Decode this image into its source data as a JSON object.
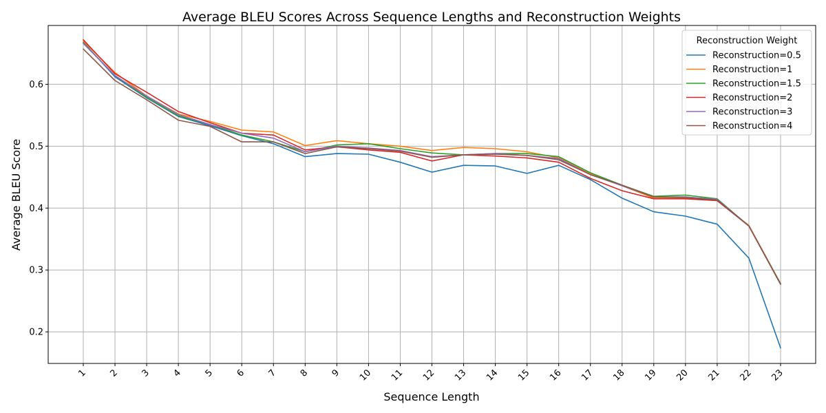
{
  "chart_data": {
    "type": "line",
    "title": "Average BLEU Scores Across Sequence Lengths and Reconstruction Weights",
    "xlabel": "Sequence Length",
    "ylabel": "Average BLEU Score",
    "x": [
      1,
      2,
      3,
      4,
      5,
      6,
      7,
      8,
      9,
      10,
      11,
      12,
      13,
      14,
      15,
      16,
      17,
      18,
      19,
      20,
      21,
      22,
      23
    ],
    "xticks": [
      "1",
      "2",
      "3",
      "4",
      "5",
      "6",
      "7",
      "8",
      "9",
      "10",
      "11",
      "12",
      "13",
      "14",
      "15",
      "16",
      "17",
      "18",
      "19",
      "20",
      "21",
      "22",
      "23"
    ],
    "ylim": [
      0.149,
      0.695
    ],
    "yticks": [
      0.2,
      0.3,
      0.4,
      0.5,
      0.6
    ],
    "ytick_labels": [
      "0.2",
      "0.3",
      "0.4",
      "0.5",
      "0.6"
    ],
    "grid": true,
    "legend": {
      "title": "Reconstruction Weight",
      "placement": "top-right"
    },
    "series": [
      {
        "name": "Reconstruction=0.5",
        "color": "#1f77b4",
        "values": [
          0.668,
          0.612,
          0.578,
          0.548,
          0.533,
          0.517,
          0.504,
          0.483,
          0.488,
          0.487,
          0.474,
          0.458,
          0.469,
          0.468,
          0.456,
          0.469,
          0.446,
          0.416,
          0.394,
          0.387,
          0.374,
          0.319,
          0.174
        ]
      },
      {
        "name": "Reconstruction=1",
        "color": "#ff7f0e",
        "values": [
          0.67,
          0.619,
          0.581,
          0.552,
          0.54,
          0.526,
          0.523,
          0.501,
          0.509,
          0.504,
          0.5,
          0.493,
          0.498,
          0.496,
          0.491,
          0.481,
          0.455,
          0.436,
          0.416,
          0.416,
          0.412,
          0.372,
          0.278
        ]
      },
      {
        "name": "Reconstruction=1.5",
        "color": "#2ca02c",
        "values": [
          0.667,
          0.614,
          0.579,
          0.549,
          0.535,
          0.518,
          0.507,
          0.491,
          0.502,
          0.504,
          0.496,
          0.489,
          0.486,
          0.488,
          0.488,
          0.483,
          0.457,
          0.437,
          0.419,
          0.421,
          0.415,
          0.371,
          0.278
        ]
      },
      {
        "name": "Reconstruction=2",
        "color": "#d62728",
        "values": [
          0.672,
          0.617,
          0.587,
          0.556,
          0.538,
          0.521,
          0.518,
          0.494,
          0.499,
          0.494,
          0.49,
          0.476,
          0.486,
          0.484,
          0.481,
          0.474,
          0.448,
          0.428,
          0.415,
          0.415,
          0.412,
          0.371,
          0.277
        ]
      },
      {
        "name": "Reconstruction=3",
        "color": "#9467bd",
        "values": [
          0.666,
          0.614,
          0.581,
          0.551,
          0.535,
          0.521,
          0.513,
          0.491,
          0.5,
          0.497,
          0.493,
          0.483,
          0.486,
          0.488,
          0.485,
          0.48,
          0.454,
          0.436,
          0.418,
          0.418,
          0.414,
          0.371,
          0.277
        ]
      },
      {
        "name": "Reconstruction=4",
        "color": "#8c564b",
        "values": [
          0.657,
          0.606,
          0.575,
          0.542,
          0.532,
          0.507,
          0.507,
          0.488,
          0.499,
          0.496,
          0.492,
          0.482,
          0.486,
          0.487,
          0.485,
          0.478,
          0.454,
          0.437,
          0.418,
          0.417,
          0.413,
          0.371,
          0.277
        ]
      }
    ]
  }
}
